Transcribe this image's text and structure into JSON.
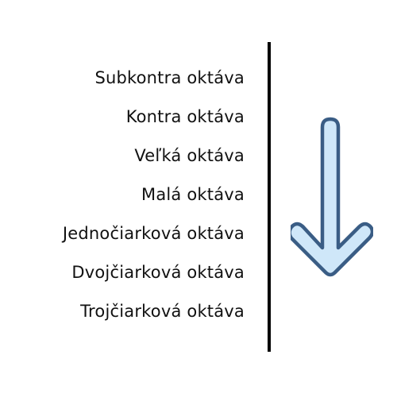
{
  "octaves": [
    "Subkontra oktáva",
    "Kontra oktáva",
    "Veľká oktáva",
    "Malá oktáva",
    "Jednočiarková oktáva",
    "Dvojčiarková oktáva",
    "Trojčiarková oktáva"
  ],
  "icons": {
    "direction": "down-arrow-icon"
  },
  "colors": {
    "arrow_fill": "#cfe7f9",
    "arrow_stroke": "#3a5d85",
    "text": "#111111",
    "divider": "#000000"
  }
}
